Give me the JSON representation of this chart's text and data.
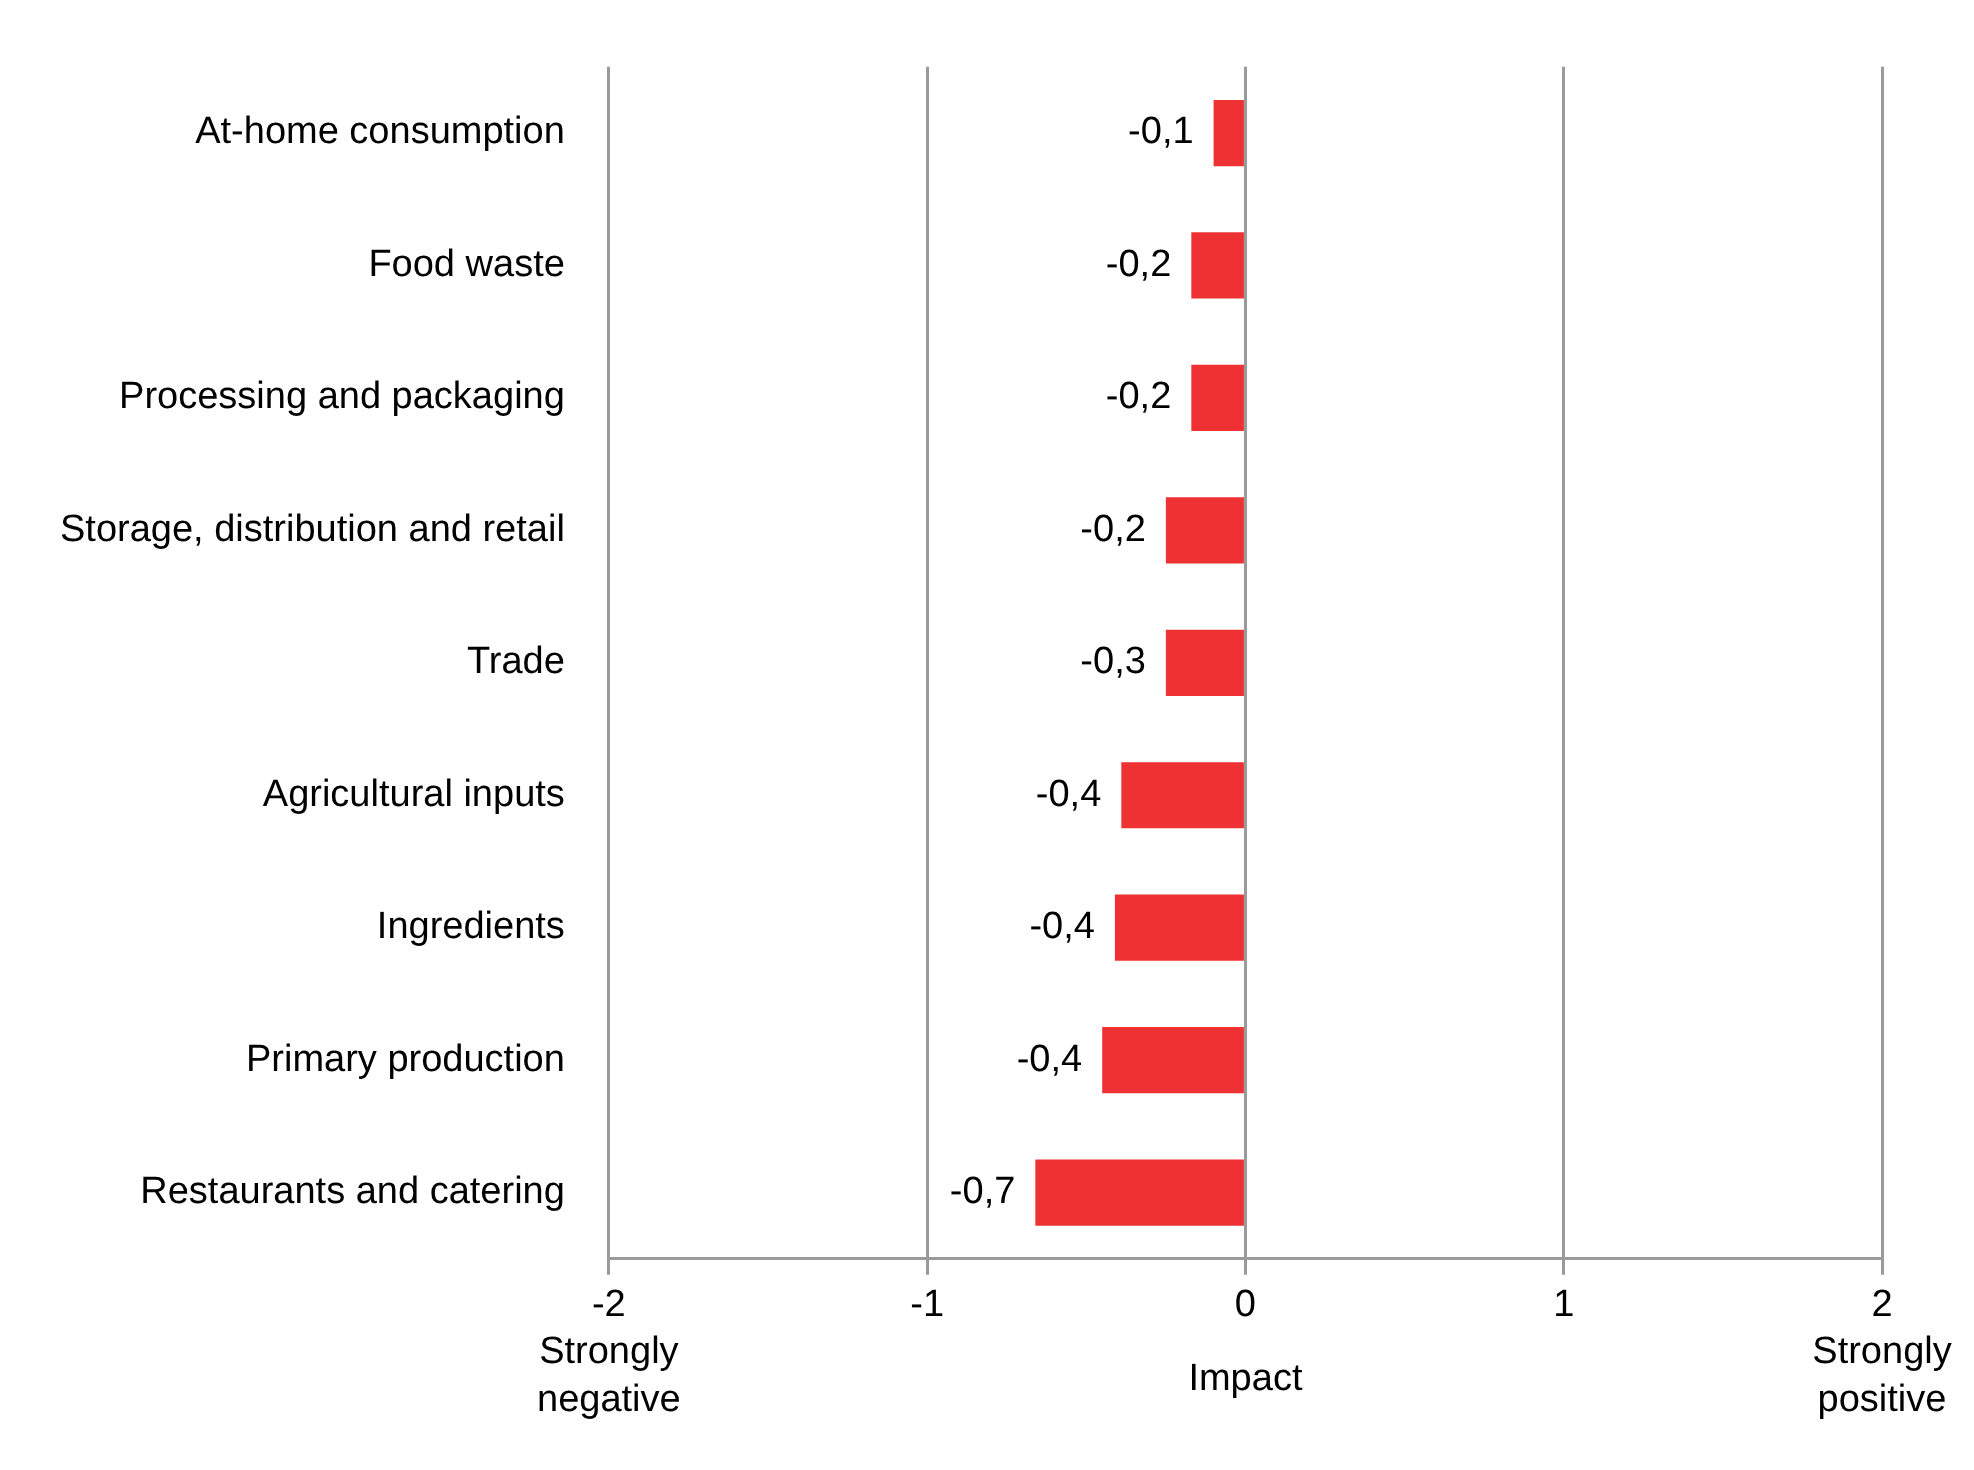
{
  "chart_data": {
    "type": "bar",
    "orientation": "horizontal",
    "xlabel": "Impact",
    "categories": [
      "At-home consumption",
      "Food waste",
      "Processing and packaging",
      "Storage, distribution and retail",
      "Trade",
      "Agricultural inputs",
      "Ingredients",
      "Primary production",
      "Restaurants and catering"
    ],
    "values": [
      -0.1,
      -0.17,
      -0.17,
      -0.25,
      -0.25,
      -0.39,
      -0.41,
      -0.45,
      -0.66
    ],
    "value_labels": [
      "-0,1",
      "-0,2",
      "-0,2",
      "-0,2",
      "-0,3",
      "-0,4",
      "-0,4",
      "-0,4",
      "-0,7"
    ],
    "color": "#ee3233",
    "xlim": [
      -2,
      2
    ],
    "xticks": [
      -2,
      -1,
      0,
      1,
      2
    ],
    "grid": "x",
    "legend": false,
    "annotations": [
      "Strongly negative",
      "Strongly positive"
    ]
  }
}
